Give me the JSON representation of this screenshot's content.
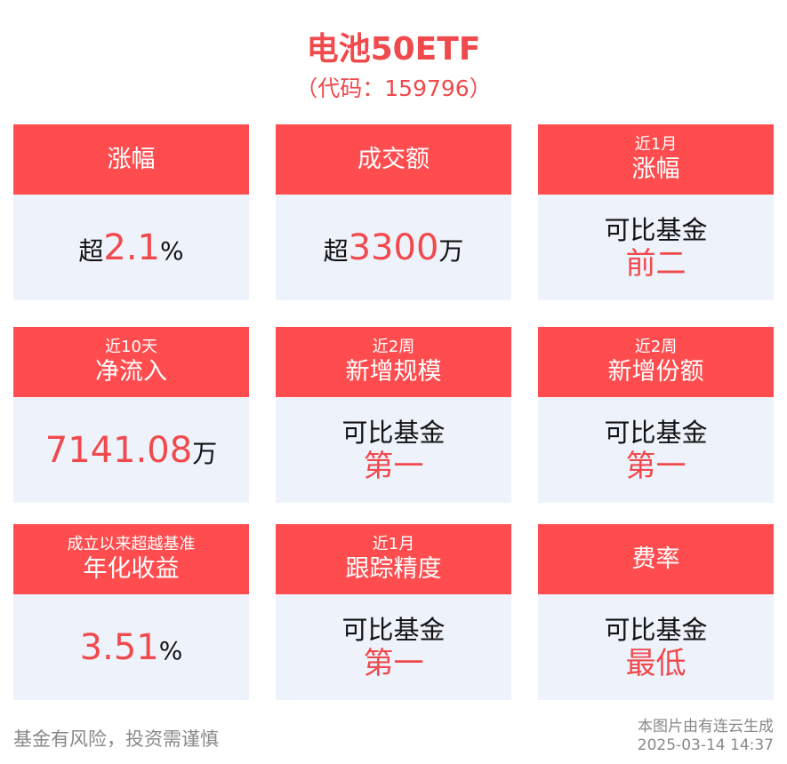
{
  "title": "电池50ETF",
  "code": "（代码：159796）",
  "cards": [
    {
      "small": "",
      "big": "涨幅",
      "prefix": "超",
      "value": "2.1",
      "suffix": "%"
    },
    {
      "small": "",
      "big": "成交额",
      "prefix": "超",
      "value": "3300",
      "suffix": "万"
    },
    {
      "small": "近1月",
      "big": "涨幅",
      "line1": "可比基金",
      "line2": "前二"
    },
    {
      "small": "近10天",
      "big": "净流入",
      "prefix": "",
      "value": "7141.08",
      "suffix": "万"
    },
    {
      "small": "近2周",
      "big": "新增规模",
      "line1": "可比基金",
      "line2": "第一"
    },
    {
      "small": "近2周",
      "big": "新增份额",
      "line1": "可比基金",
      "line2": "第一"
    },
    {
      "small": "成立以来超越基准",
      "big": "年化收益",
      "prefix": "",
      "value": "3.51",
      "suffix": "%"
    },
    {
      "small": "近1月",
      "big": "跟踪精度",
      "line1": "可比基金",
      "line2": "第一"
    },
    {
      "small": "",
      "big": "费率",
      "line1": "可比基金",
      "line2": "最低"
    }
  ],
  "footer": {
    "disclaimer": "基金有风险，投资需谨慎",
    "source": "本图片由有连云生成",
    "timestamp": "2025-03-14 14:37"
  },
  "colors": {
    "accent": "#ff4d4f",
    "value_red": "#f04a4d",
    "body_bg": "#eef2fb"
  }
}
